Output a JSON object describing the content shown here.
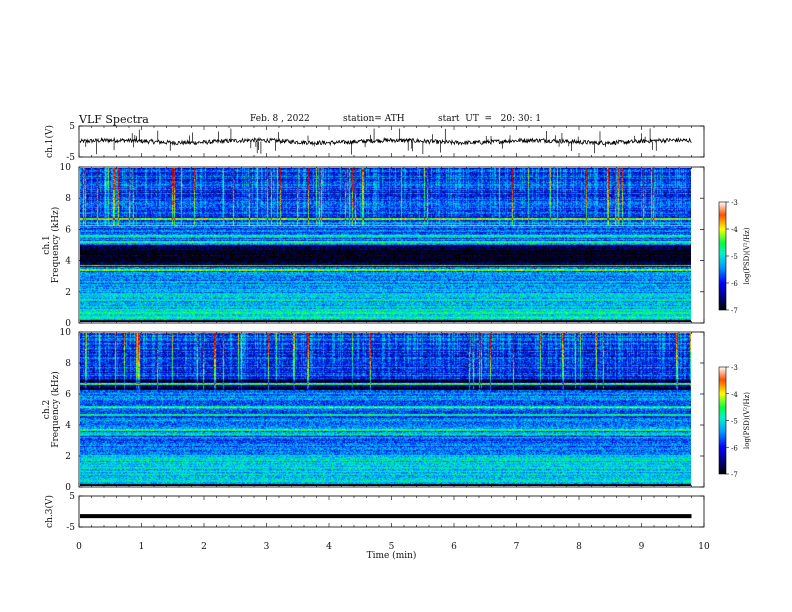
{
  "header": {
    "title": "VLF Spectra",
    "date": "Feb. 8 , 2022",
    "station": "station= ATH",
    "start": "start  UT  =   20: 30: 1"
  },
  "chart_data": [
    {
      "type": "line",
      "panel": "ch1-waveform",
      "ylabel": "ch.1(V)",
      "ylim": [
        -5,
        5
      ],
      "yticks": [
        "5",
        "-5"
      ],
      "x_range_min": [
        0,
        9.8
      ],
      "baseline_value_V": 0,
      "color": "#000000"
    },
    {
      "type": "heatmap",
      "panel": "ch1-spectrogram",
      "ylabel_channel": "ch.1",
      "ylabel": "Frequency  (kHz)",
      "ylim": [
        0,
        10
      ],
      "yticks": [
        "0",
        "2",
        "4",
        "6",
        "8",
        "10"
      ],
      "colorbar": {
        "label": "log(PSD)(V²/Hz)",
        "range": [
          -7,
          -3
        ],
        "ticks": [
          "-3",
          "-4",
          "-5",
          "-6",
          "-7"
        ]
      },
      "quiet_band_khz": [
        3.6,
        5.0
      ],
      "bright_lines_khz": [
        3.4,
        3.7,
        5.2,
        5.6,
        6.3,
        6.7
      ]
    },
    {
      "type": "heatmap",
      "panel": "ch2-spectrogram",
      "ylabel_channel": "ch.2",
      "ylabel": "Frequency  (kHz)",
      "ylim": [
        0,
        10
      ],
      "yticks": [
        "0",
        "2",
        "4",
        "6",
        "8",
        "10"
      ],
      "colorbar": {
        "label": "log(PSD)(V²/Hz)",
        "range": [
          -7,
          -3
        ],
        "ticks": [
          "-3",
          "-4",
          "-5",
          "-6",
          "-7"
        ]
      },
      "quiet_band_khz": [
        6.3,
        7.0
      ],
      "bright_lines_khz": [
        3.4,
        3.7,
        4.7,
        5.2,
        6.7
      ]
    },
    {
      "type": "line",
      "panel": "ch3-waveform",
      "ylabel": "ch.3(V)",
      "ylim": [
        -5,
        5
      ],
      "yticks": [
        "5",
        "-5"
      ],
      "x_range_min": [
        0,
        9.8
      ],
      "baseline_value_V": -1.5,
      "color": "#000000"
    }
  ],
  "xaxis": {
    "label": "Time  (min)",
    "range": [
      0,
      10
    ],
    "ticks": [
      "0",
      "1",
      "2",
      "3",
      "4",
      "5",
      "6",
      "7",
      "8",
      "9",
      "10"
    ]
  },
  "colors": {
    "background": "#ffffff",
    "axes": "#000000",
    "colormap": [
      "#000000",
      "#000050",
      "#0000a0",
      "#0028ff",
      "#00a0ff",
      "#00e8e0",
      "#00ff60",
      "#c8ff00",
      "#ffd000",
      "#ff6000",
      "#d00000"
    ]
  }
}
